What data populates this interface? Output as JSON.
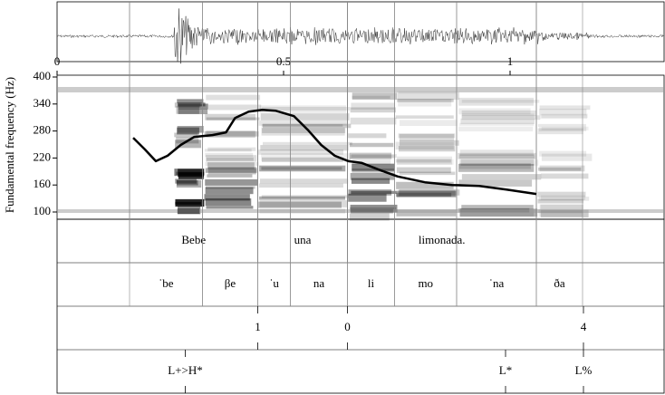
{
  "chart_data": {
    "type": "line",
    "y_label": "Fundamental frequency (Hz)",
    "xlim": [
      0,
      1.34
    ],
    "ylim": [
      100,
      400
    ],
    "xticks": [
      0,
      0.5,
      1
    ],
    "yticks": [
      100,
      160,
      220,
      280,
      340,
      400
    ],
    "color": "#000000",
    "x": [
      0.168,
      0.194,
      0.218,
      0.244,
      0.273,
      0.303,
      0.343,
      0.373,
      0.393,
      0.423,
      0.453,
      0.483,
      0.523,
      0.553,
      0.583,
      0.613,
      0.643,
      0.673,
      0.713,
      0.752,
      0.812,
      0.872,
      0.932,
      0.992,
      1.058
    ],
    "values": [
      265,
      239,
      213,
      225,
      249,
      267,
      271,
      277,
      309,
      323,
      327,
      325,
      313,
      283,
      249,
      225,
      213,
      209,
      193,
      179,
      166,
      160,
      158,
      150,
      140
    ],
    "tiers": [
      {
        "intervals": [
          {
            "label": "Bebe",
            "start": 0.16,
            "end": 0.443
          },
          {
            "label": "una",
            "start": 0.443,
            "end": 0.641
          },
          {
            "label": "limonada.",
            "start": 0.641,
            "end": 1.058
          }
        ]
      },
      {
        "intervals": [
          {
            "label": "ˈbe",
            "start": 0.16,
            "end": 0.321
          },
          {
            "label": "βe",
            "start": 0.321,
            "end": 0.443
          },
          {
            "label": "ˈu",
            "start": 0.443,
            "end": 0.515
          },
          {
            "label": "na",
            "start": 0.515,
            "end": 0.641
          },
          {
            "label": "li",
            "start": 0.641,
            "end": 0.745
          },
          {
            "label": "mo",
            "start": 0.745,
            "end": 0.882
          },
          {
            "label": "ˈna",
            "start": 0.882,
            "end": 1.058
          },
          {
            "label": "ða",
            "start": 1.058,
            "end": 1.16
          }
        ]
      },
      {
        "points": [
          {
            "label": "1",
            "time": 0.443
          },
          {
            "label": "0",
            "time": 0.641
          },
          {
            "label": "4",
            "time": 1.162
          }
        ]
      },
      {
        "points": [
          {
            "label": "L+>H*",
            "time": 0.283
          },
          {
            "label": "L*",
            "time": 0.99
          },
          {
            "label": "L%",
            "time": 1.162
          }
        ]
      }
    ]
  }
}
